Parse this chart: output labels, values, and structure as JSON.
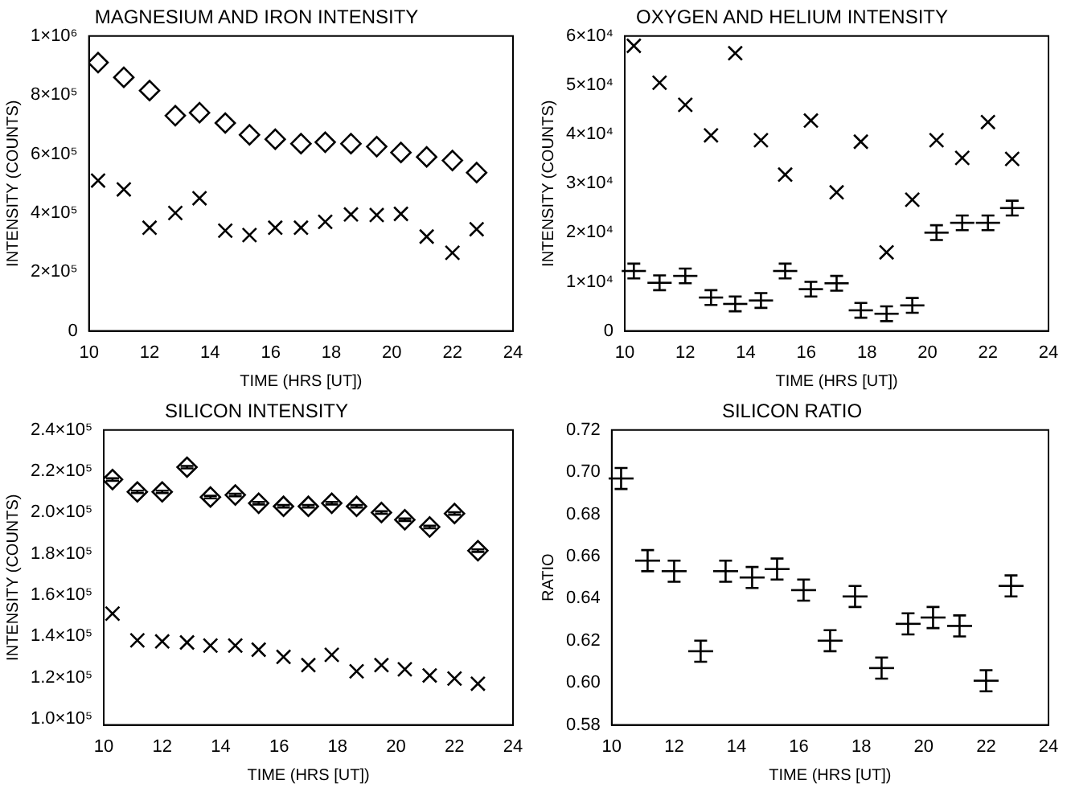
{
  "chart_data": [
    {
      "type": "scatter",
      "title": "MAGNESIUM AND IRON INTENSITY",
      "xlabel": "TIME (HRS [UT])",
      "ylabel": "INTENSITY (COUNTS)",
      "xlim": [
        10,
        24
      ],
      "xticks": [
        10,
        12,
        14,
        16,
        18,
        20,
        22,
        24
      ],
      "ylim": [
        0,
        1000000
      ],
      "yticks": [
        0,
        {
          "value": 200000,
          "label": "2×10⁵"
        },
        {
          "value": 400000,
          "label": "4×10⁵"
        },
        {
          "value": 600000,
          "label": "6×10⁵"
        },
        {
          "value": 800000,
          "label": "8×10⁵"
        },
        {
          "value": 1000000,
          "label": "1×10⁶"
        }
      ],
      "grid": false,
      "legend": false,
      "x": [
        10.3,
        11.15,
        12.0,
        12.85,
        13.65,
        14.5,
        15.3,
        16.15,
        17.0,
        17.8,
        18.65,
        19.5,
        20.3,
        21.15,
        22.0,
        22.8
      ],
      "series": [
        {
          "color": "#000000",
          "marker": "diamond",
          "values": [
            910000,
            860000,
            815000,
            730000,
            740000,
            705000,
            665000,
            650000,
            635000,
            640000,
            635000,
            625000,
            605000,
            590000,
            578000,
            537000
          ]
        },
        {
          "color": "#000000",
          "marker": "cross",
          "values": [
            510000,
            480000,
            350000,
            400000,
            450000,
            340000,
            325000,
            350000,
            350000,
            370000,
            395000,
            393000,
            397000,
            320000,
            265000,
            345000
          ]
        }
      ]
    },
    {
      "type": "scatter",
      "title": "OXYGEN AND HELIUM INTENSITY",
      "xlabel": "TIME (HRS [UT])",
      "ylabel": "INTENSITY (COUNTS)",
      "xlim": [
        10,
        24
      ],
      "xticks": [
        10,
        12,
        14,
        16,
        18,
        20,
        22,
        24
      ],
      "ylim": [
        0,
        60000
      ],
      "yticks": [
        0,
        {
          "value": 10000,
          "label": "1×10⁴"
        },
        {
          "value": 20000,
          "label": "2×10⁴"
        },
        {
          "value": 30000,
          "label": "3×10⁴"
        },
        {
          "value": 40000,
          "label": "4×10⁴"
        },
        {
          "value": 50000,
          "label": "5×10⁴"
        },
        {
          "value": 60000,
          "label": "6×10⁴"
        }
      ],
      "grid": false,
      "legend": false,
      "x": [
        10.3,
        11.15,
        12.0,
        12.85,
        13.65,
        14.5,
        15.3,
        16.15,
        17.0,
        17.8,
        18.65,
        19.5,
        20.3,
        21.15,
        22.0,
        22.8
      ],
      "series": [
        {
          "color": "#000000",
          "marker": "cross",
          "values": [
            58000,
            50500,
            46000,
            39800,
            56500,
            38800,
            31800,
            42800,
            28200,
            38500,
            16000,
            26700,
            38800,
            35200,
            42500,
            35000
          ]
        },
        {
          "color": "#000000",
          "values": [
            12200,
            9800,
            11200,
            6800,
            5500,
            6200,
            12200,
            8500,
            9700,
            4200,
            3500,
            5200,
            20000,
            22000,
            22000,
            25000
          ],
          "errors": [
            1500,
            1500,
            1500,
            1500,
            1500,
            1500,
            1500,
            1500,
            1500,
            1500,
            1500,
            1500,
            1500,
            1500,
            1500,
            1500
          ],
          "xerrors": [
            0.4,
            0.4,
            0.4,
            0.4,
            0.4,
            0.4,
            0.4,
            0.4,
            0.4,
            0.4,
            0.4,
            0.4,
            0.4,
            0.4,
            0.4,
            0.4
          ]
        }
      ]
    },
    {
      "type": "scatter",
      "title": "SILICON INTENSITY",
      "xlabel": "TIME (HRS [UT])",
      "ylabel": "INTENSITY (COUNTS)",
      "xlim": [
        10,
        24
      ],
      "xticks": [
        10,
        12,
        14,
        16,
        18,
        20,
        22,
        24
      ],
      "ylim": [
        97000,
        240000
      ],
      "yticks": [
        {
          "value": 100000,
          "label": "1.0×10⁵"
        },
        {
          "value": 120000,
          "label": "1.2×10⁵"
        },
        {
          "value": 140000,
          "label": "1.4×10⁵"
        },
        {
          "value": 160000,
          "label": "1.6×10⁵"
        },
        {
          "value": 180000,
          "label": "1.8×10⁵"
        },
        {
          "value": 200000,
          "label": "2.0×10⁵"
        },
        {
          "value": 220000,
          "label": "2.2×10⁵"
        },
        {
          "value": 240000,
          "label": "2.4×10⁵"
        }
      ],
      "grid": false,
      "legend": false,
      "x": [
        10.3,
        11.15,
        12.0,
        12.85,
        13.65,
        14.5,
        15.3,
        16.15,
        17.0,
        17.8,
        18.65,
        19.5,
        20.3,
        21.15,
        22.0,
        22.8
      ],
      "series": [
        {
          "color": "#000000",
          "marker": "diamond",
          "values": [
            216000,
            210000,
            210000,
            222000,
            207500,
            208500,
            204500,
            203000,
            203000,
            204500,
            203000,
            200000,
            196500,
            193000,
            199500,
            181500
          ],
          "errors": [
            600,
            600,
            600,
            600,
            600,
            600,
            600,
            600,
            600,
            600,
            600,
            600,
            600,
            600,
            600,
            600
          ]
        },
        {
          "color": "#000000",
          "marker": "cross",
          "values": [
            151000,
            138000,
            137500,
            137000,
            135500,
            135500,
            133500,
            130000,
            126000,
            131000,
            123000,
            126000,
            124000,
            121000,
            119500,
            117000
          ]
        }
      ]
    },
    {
      "type": "scatter",
      "title": "SILICON RATIO",
      "xlabel": "TIME (HRS [UT])",
      "ylabel": "RATIO",
      "xlim": [
        10,
        24
      ],
      "xticks": [
        10,
        12,
        14,
        16,
        18,
        20,
        22,
        24
      ],
      "ylim": [
        0.58,
        0.72
      ],
      "yticks": [
        {
          "value": 0.58,
          "label": "0.58"
        },
        {
          "value": 0.6,
          "label": "0.60"
        },
        {
          "value": 0.62,
          "label": "0.62"
        },
        {
          "value": 0.64,
          "label": "0.64"
        },
        {
          "value": 0.66,
          "label": "0.66"
        },
        {
          "value": 0.68,
          "label": "0.68"
        },
        {
          "value": 0.7,
          "label": "0.70"
        },
        {
          "value": 0.72,
          "label": "0.72"
        }
      ],
      "grid": false,
      "legend": false,
      "x": [
        10.3,
        11.15,
        12.0,
        12.85,
        13.65,
        14.5,
        15.3,
        16.15,
        17.0,
        17.8,
        18.65,
        19.5,
        20.3,
        21.15,
        22.0,
        22.8
      ],
      "series": [
        {
          "color": "#000000",
          "values": [
            0.697,
            0.658,
            0.653,
            0.615,
            0.653,
            0.65,
            0.654,
            0.644,
            0.62,
            0.641,
            0.607,
            0.628,
            0.631,
            0.627,
            0.601,
            0.646
          ],
          "errors": [
            0.005,
            0.005,
            0.005,
            0.005,
            0.005,
            0.005,
            0.005,
            0.005,
            0.005,
            0.005,
            0.005,
            0.005,
            0.005,
            0.005,
            0.005,
            0.005
          ],
          "xerrors": [
            0.4,
            0.4,
            0.4,
            0.4,
            0.4,
            0.4,
            0.4,
            0.4,
            0.4,
            0.4,
            0.4,
            0.4,
            0.4,
            0.4,
            0.4,
            0.4
          ]
        }
      ]
    }
  ]
}
